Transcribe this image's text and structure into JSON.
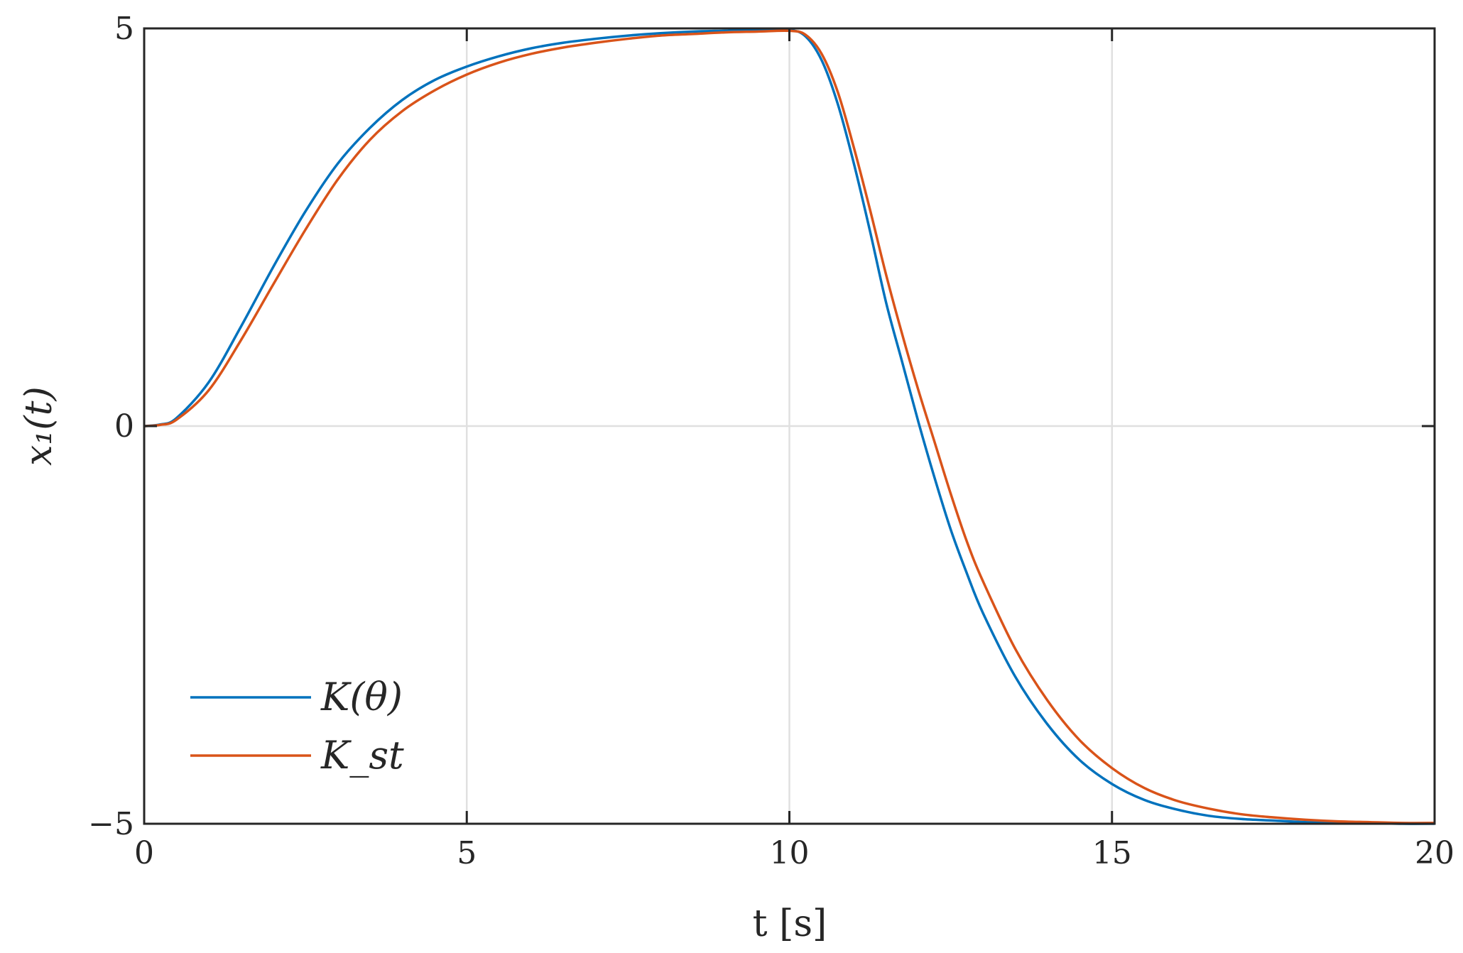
{
  "chart_data": {
    "type": "line",
    "xlabel": "t [s]",
    "ylabel": "x₁(t)",
    "xlim": [
      0,
      20
    ],
    "ylim": [
      -5,
      5
    ],
    "xticks": [
      0,
      5,
      10,
      15,
      20
    ],
    "yticks": [
      -5,
      0,
      5
    ],
    "xtick_labels": [
      "0",
      "5",
      "10",
      "15",
      "20"
    ],
    "ytick_labels": [
      "−5",
      "0",
      "5"
    ],
    "grid": true,
    "legend_position": "bottom-left",
    "x": [
      0,
      0.25,
      0.5,
      1,
      1.5,
      2,
      2.5,
      3,
      3.5,
      4,
      4.5,
      5,
      5.5,
      6,
      6.5,
      7,
      7.5,
      8,
      8.5,
      9,
      9.5,
      10,
      10.25,
      10.5,
      10.75,
      11,
      11.25,
      11.5,
      11.75,
      12,
      12.25,
      12.5,
      12.75,
      13,
      13.5,
      14,
      14.5,
      15,
      15.5,
      16,
      16.5,
      17,
      17.5,
      18,
      18.5,
      19,
      19.5,
      20
    ],
    "series": [
      {
        "name": "K(θ)",
        "color": "#0072BD",
        "values": [
          0,
          0.02,
          0.1,
          0.55,
          1.25,
          2.0,
          2.7,
          3.3,
          3.75,
          4.1,
          4.35,
          4.52,
          4.65,
          4.75,
          4.82,
          4.87,
          4.91,
          4.94,
          4.96,
          4.97,
          4.98,
          4.98,
          4.9,
          4.6,
          4.05,
          3.3,
          2.45,
          1.55,
          0.8,
          0.05,
          -0.65,
          -1.3,
          -1.85,
          -2.35,
          -3.15,
          -3.75,
          -4.2,
          -4.5,
          -4.7,
          -4.82,
          -4.9,
          -4.94,
          -4.96,
          -4.98,
          -4.99,
          -4.99,
          -5.0,
          -5.0
        ]
      },
      {
        "name": "K_st",
        "color": "#D95319",
        "values": [
          0,
          0.015,
          0.08,
          0.45,
          1.08,
          1.78,
          2.47,
          3.1,
          3.6,
          3.96,
          4.22,
          4.42,
          4.57,
          4.68,
          4.76,
          4.82,
          4.87,
          4.91,
          4.93,
          4.95,
          4.96,
          4.97,
          4.92,
          4.68,
          4.2,
          3.5,
          2.72,
          1.9,
          1.15,
          0.45,
          -0.2,
          -0.85,
          -1.45,
          -1.95,
          -2.8,
          -3.45,
          -3.95,
          -4.3,
          -4.55,
          -4.71,
          -4.81,
          -4.88,
          -4.92,
          -4.95,
          -4.97,
          -4.98,
          -4.99,
          -4.99
        ]
      }
    ]
  }
}
